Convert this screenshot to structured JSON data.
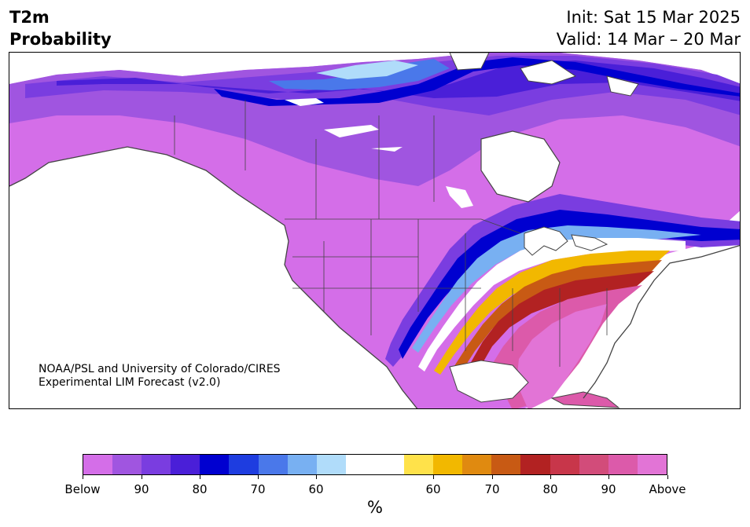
{
  "header": {
    "title_line1": "T2m",
    "title_line2": "Probability",
    "init": "Init: Sat 15 Mar 2025",
    "valid": "Valid: 14 Mar – 20 Mar"
  },
  "credit": {
    "line1": "NOAA/PSL and University of Colorado/CIRES",
    "line2": "Experimental LIM Forecast (v2.0)"
  },
  "colorbar": {
    "colors": [
      "#d46ee8",
      "#a055e0",
      "#7a3de0",
      "#4a1fd8",
      "#0000d0",
      "#1e3de0",
      "#4a78ea",
      "#78b0f2",
      "#b0dcfa",
      "#ffffff",
      "#ffffff",
      "#ffe24a",
      "#f2b800",
      "#e08a10",
      "#c85a14",
      "#b22222",
      "#c8364a",
      "#d24c7a",
      "#dc5aaa",
      "#e274d6"
    ],
    "ticks": [
      "Below",
      "90",
      "80",
      "70",
      "60",
      "60",
      "70",
      "80",
      "90",
      "Above"
    ],
    "unit": "%"
  },
  "legend_colors": {
    "below_strong": "#d46ee8",
    "cold_core": "#0000d0",
    "neutral": "#ffffff",
    "warm_core": "#b22222",
    "above_strong": "#e274d6"
  }
}
